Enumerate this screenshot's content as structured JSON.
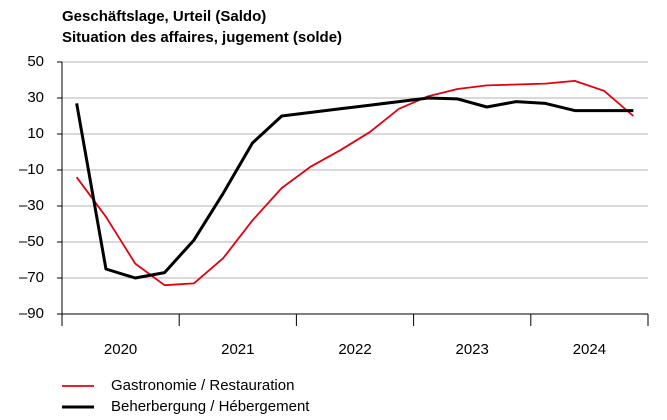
{
  "chart_data": {
    "type": "line",
    "title": "Geschäftslage, Urteil (Saldo)",
    "subtitle": "Situation des affaires, jugement (solde)",
    "categories": [
      null,
      null,
      null,
      null,
      null,
      null,
      null,
      null,
      null,
      null,
      null,
      null,
      null,
      null,
      null,
      null,
      null,
      null,
      null,
      null
    ],
    "year_labels": [
      "2020",
      "2021",
      "2022",
      "2023",
      "2024"
    ],
    "series": [
      {
        "name": "Gastronomie / Restauration",
        "color": "#e3000f",
        "values": [
          -14,
          -36,
          -62,
          -74,
          -73,
          -59,
          -38,
          -20,
          -8,
          1,
          11,
          24,
          31,
          35,
          37,
          37.5,
          38,
          39.5,
          34,
          20
        ]
      },
      {
        "name": "Beherbergung / Hébergement",
        "color": "#000000",
        "values": [
          27,
          -65,
          -70,
          -67,
          -49,
          -23,
          5,
          20,
          22,
          24,
          26,
          28,
          30,
          29.5,
          25,
          28,
          27,
          23,
          23,
          23
        ]
      }
    ],
    "ylim": [
      -90,
      50
    ],
    "yticks": [
      {
        "value": -90,
        "label": "–90"
      },
      {
        "value": -70,
        "label": "–70"
      },
      {
        "value": -50,
        "label": "–50"
      },
      {
        "value": -30,
        "label": "–30"
      },
      {
        "value": -10,
        "label": "–10"
      },
      10,
      30,
      50
    ],
    "grid": true
  }
}
